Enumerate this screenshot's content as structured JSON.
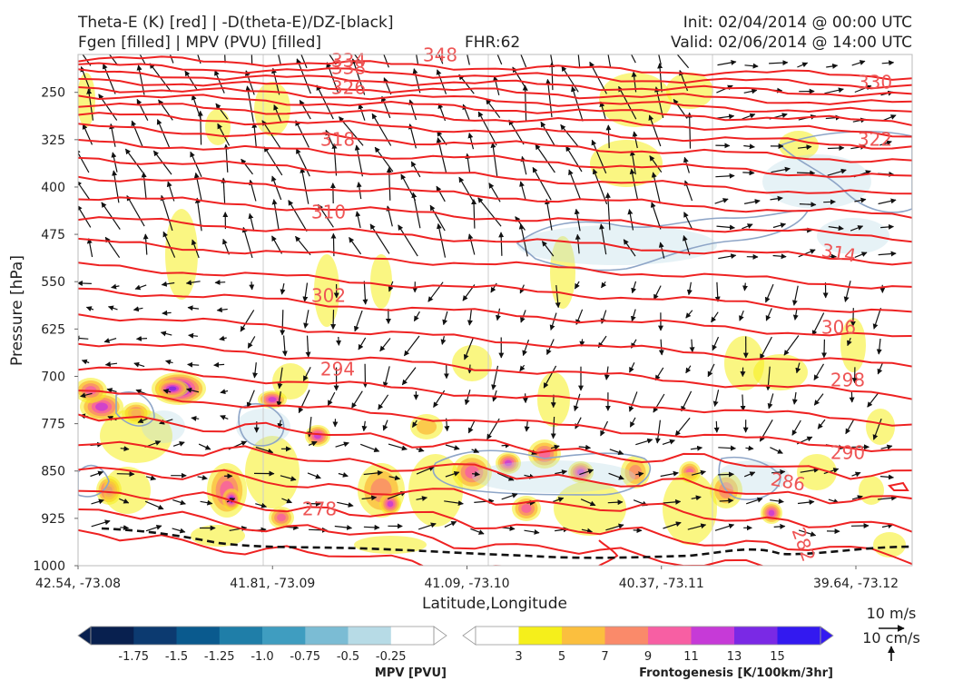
{
  "header": {
    "title_line1": "Theta-E (K) [red] | -D(theta-E)/DZ-[black]",
    "title_line2": "Fgen [filled] | MPV (PVU) [filled]",
    "fhr": "FHR:62",
    "init": "Init: 02/04/2014 @ 00:00 UTC",
    "valid": "Valid: 02/06/2014 @ 14:00 UTC"
  },
  "chart_data": {
    "type": "cross-section",
    "xlabel": "Latitude,Longitude",
    "ylabel": "Pressure [hPa]",
    "x_ticks": [
      "42.54, -73.08",
      "41.81, -73.09",
      "41.09, -73.10",
      "40.37, -73.11",
      "39.64, -73.12"
    ],
    "y_ticks": [
      250,
      325,
      400,
      475,
      550,
      625,
      700,
      775,
      850,
      925,
      1000
    ],
    "ylim": [
      1000,
      190
    ],
    "y_inverted": true,
    "grid": true,
    "theta_e_labels": [
      "348",
      "334",
      "338",
      "326",
      "330",
      "318",
      "322",
      "310",
      "314",
      "302",
      "306",
      "294",
      "298",
      "290",
      "286",
      "278",
      "282"
    ],
    "theta_e_color": "#ee2222",
    "wind_reference": {
      "label1": "10 m/s",
      "label2": "10 cm/s"
    },
    "mpv_colorbar": {
      "title": "MPV [PVU]",
      "ticks": [
        "-1.75",
        "-1.5",
        "-1.25",
        "-1.0",
        "-0.75",
        "-0.5",
        "-0.25"
      ],
      "colors": [
        "#08204f",
        "#0c3a70",
        "#0a5a8e",
        "#1f7ea8",
        "#3f9dc0",
        "#7bbcd4",
        "#b7dbe6",
        "#ffffff"
      ]
    },
    "fgen_colorbar": {
      "title": "Frontogenesis [K/100km/3hr]",
      "ticks": [
        "3",
        "5",
        "7",
        "9",
        "11",
        "13",
        "15"
      ],
      "colors": [
        "#ffffff",
        "#f5ef1b",
        "#fbbf3e",
        "#fa8a6a",
        "#f75fa3",
        "#c63ad7",
        "#7a29e5",
        "#3319f0"
      ]
    }
  }
}
